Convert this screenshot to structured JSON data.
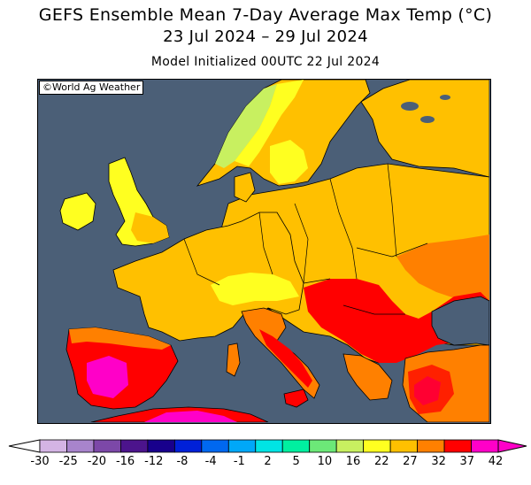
{
  "title": {
    "line1": "GEFS Ensemble Mean 7-Day Average Max Temp (°C)",
    "line2": "23 Jul 2024 – 29 Jul 2024",
    "line3": "Model Initialized 00UTC 22 Jul 2024"
  },
  "credit": "©World Ag Weather",
  "colors": {
    "sea": "#4b5f77",
    "lakes": "#4b5f77",
    "borders": "#000000"
  },
  "legend": {
    "ticks": [
      "-30",
      "-25",
      "-20",
      "-16",
      "-12",
      "-8",
      "-4",
      "-1",
      "2",
      "5",
      "10",
      "16",
      "22",
      "27",
      "32",
      "37",
      "42"
    ],
    "colors": [
      "#d4b4e4",
      "#a884cc",
      "#7c48a8",
      "#4c148c",
      "#18008c",
      "#0020d8",
      "#0068f0",
      "#00a8f8",
      "#00e4e4",
      "#00f0a0",
      "#6ce878",
      "#c8f060",
      "#ffff20",
      "#ffc000",
      "#ff8000",
      "#ff0000",
      "#ff00c8"
    ]
  }
}
